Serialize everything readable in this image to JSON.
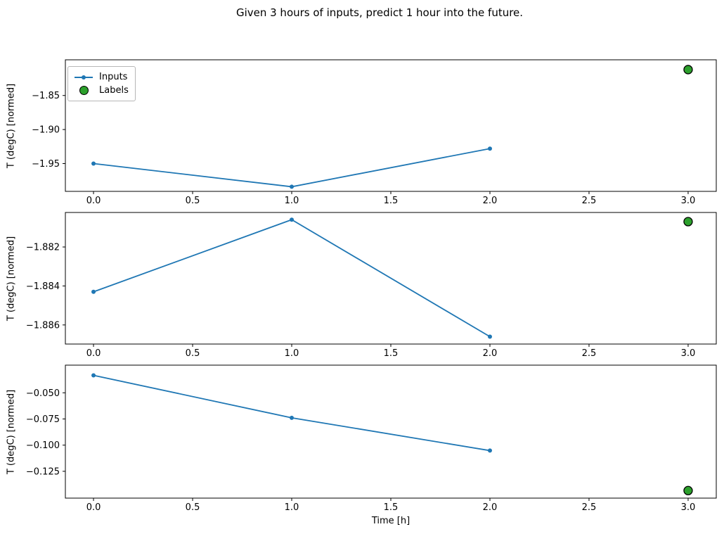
{
  "figure": {
    "title": "Given 3 hours of inputs, predict 1 hour into the future.",
    "xlabel": "Time [h]",
    "ylabel": "T (degC) [normed]",
    "legend": {
      "inputs": "Inputs",
      "labels": "Labels"
    }
  },
  "colors": {
    "inputs_line": "#1f77b4",
    "labels_fill": "#2ca02c",
    "labels_edge": "#000000",
    "axis": "#000000",
    "text": "#000000"
  },
  "chart_data": {
    "type": "line",
    "title": "Given 3 hours of inputs, predict 1 hour into the future.",
    "xlabel": "Time [h]",
    "ylabel": "T (degC) [normed]",
    "legend_position": "upper left of first panel",
    "grid": false,
    "x": [
      0,
      1,
      2
    ],
    "label_x": 3,
    "xlim": [
      -0.142,
      3.142
    ],
    "xticks": {
      "values": [
        0,
        0.5,
        1,
        1.5,
        2,
        2.5,
        3
      ],
      "labels": [
        "0.0",
        "0.5",
        "1.0",
        "1.5",
        "2.0",
        "2.5",
        "3.0"
      ]
    },
    "panels": [
      {
        "name": "sample-1",
        "series": [
          {
            "name": "Inputs",
            "type": "line+marker",
            "x": [
              0,
              1,
              2
            ],
            "values": [
              -1.95,
              -1.984,
              -1.928
            ]
          },
          {
            "name": "Labels",
            "type": "scatter",
            "x": [
              3
            ],
            "values": [
              -1.812
            ]
          }
        ],
        "yticks": {
          "values": [
            -1.85,
            -1.9,
            -1.95
          ],
          "labels": [
            "−1.85",
            "−1.90",
            "−1.95"
          ]
        },
        "ylim": [
          -1.9908,
          -1.7976
        ]
      },
      {
        "name": "sample-2",
        "series": [
          {
            "name": "Inputs",
            "type": "line+marker",
            "x": [
              0,
              1,
              2
            ],
            "values": [
              -1.8843,
              -1.8806,
              -1.8866
            ]
          },
          {
            "name": "Labels",
            "type": "scatter",
            "x": [
              3
            ],
            "values": [
              -1.8807
            ]
          }
        ],
        "yticks": {
          "values": [
            -1.882,
            -1.884,
            -1.886
          ],
          "labels": [
            "−1.882",
            "−1.884",
            "−1.886"
          ]
        },
        "ylim": [
          -1.88698,
          -1.88023
        ]
      },
      {
        "name": "sample-3",
        "series": [
          {
            "name": "Inputs",
            "type": "line+marker",
            "x": [
              0,
              1,
              2
            ],
            "values": [
              -0.0333,
              -0.0739,
              -0.1052
            ]
          },
          {
            "name": "Labels",
            "type": "scatter",
            "x": [
              3
            ],
            "values": [
              -0.1434
            ]
          }
        ],
        "yticks": {
          "values": [
            -0.05,
            -0.075,
            -0.1,
            -0.125
          ],
          "labels": [
            "−0.050",
            "−0.075",
            "−0.100",
            "−0.125"
          ]
        },
        "ylim": [
          -0.15061,
          -0.02359
        ]
      }
    ]
  }
}
